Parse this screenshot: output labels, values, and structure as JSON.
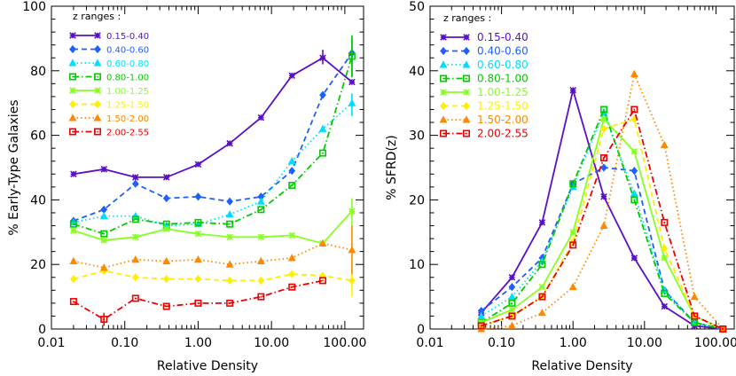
{
  "chart_data": [
    {
      "type": "line",
      "xlabel": "Relative Density",
      "ylabel": "% Early-Type Galaxies",
      "xscale": "log",
      "xlim": [
        0.01,
        180
      ],
      "ylim": [
        0,
        100
      ],
      "xticks": [
        0.01,
        0.1,
        1,
        10,
        100
      ],
      "xtick_labels": [
        "0.01",
        "0.10",
        "1.00",
        "10.00",
        "100.00"
      ],
      "yticks": [
        0,
        20,
        40,
        60,
        80,
        100
      ],
      "ytick_labels": [
        "0",
        "20",
        "40",
        "60",
        "80",
        "100"
      ],
      "legend_title": "z ranges :",
      "legend_position": "top-left",
      "series": [
        {
          "name": "0.15-0.40",
          "color": "#5a0fc8",
          "dash": "solid",
          "marker": "asterisk",
          "points": [
            [
              0.02,
              48
            ],
            [
              0.052,
              49.5
            ],
            [
              0.14,
              47
            ],
            [
              0.37,
              47
            ],
            [
              1.0,
              51
            ],
            [
              2.7,
              57.5
            ],
            [
              7.2,
              65.5
            ],
            [
              19,
              78.5
            ],
            [
              50,
              84
            ],
            [
              125,
              76.5
            ]
          ]
        },
        {
          "name": "0.40-0.60",
          "color": "#1f5fff",
          "dash": "dashed",
          "marker": "diamond",
          "points": [
            [
              0.02,
              33.5
            ],
            [
              0.052,
              37
            ],
            [
              0.14,
              45
            ],
            [
              0.37,
              40.5
            ],
            [
              1.0,
              41
            ],
            [
              2.7,
              39.5
            ],
            [
              7.2,
              41
            ],
            [
              19,
              49
            ],
            [
              50,
              72.5
            ],
            [
              125,
              85.5
            ]
          ]
        },
        {
          "name": "0.60-0.80",
          "color": "#00ddff",
          "dash": "dotted",
          "marker": "triangle",
          "points": [
            [
              0.02,
              33
            ],
            [
              0.052,
              35
            ],
            [
              0.14,
              35
            ],
            [
              0.37,
              32
            ],
            [
              1.0,
              32.5
            ],
            [
              2.7,
              35.5
            ],
            [
              7.2,
              39.5
            ],
            [
              19,
              52
            ],
            [
              50,
              62
            ],
            [
              125,
              70
            ]
          ]
        },
        {
          "name": "0.80-1.00",
          "color": "#00cc00",
          "dash": "dashdot",
          "marker": "square",
          "points": [
            [
              0.02,
              32.5
            ],
            [
              0.052,
              29.5
            ],
            [
              0.14,
              34
            ],
            [
              0.37,
              32.5
            ],
            [
              1.0,
              33
            ],
            [
              2.7,
              32.5
            ],
            [
              7.2,
              37
            ],
            [
              19,
              44.5
            ],
            [
              50,
              54.5
            ],
            [
              125,
              84.5
            ]
          ]
        },
        {
          "name": "1.00-1.25",
          "color": "#88ff22",
          "dash": "solid",
          "marker": "asterisk",
          "points": [
            [
              0.02,
              30.5
            ],
            [
              0.052,
              27.5
            ],
            [
              0.14,
              28.5
            ],
            [
              0.37,
              31
            ],
            [
              1.0,
              29.5
            ],
            [
              2.7,
              28.5
            ],
            [
              7.2,
              28.5
            ],
            [
              19,
              29
            ],
            [
              50,
              26.5
            ],
            [
              125,
              36.5
            ]
          ]
        },
        {
          "name": "1.25-1.50",
          "color": "#ffee00",
          "dash": "dashed",
          "marker": "diamond",
          "points": [
            [
              0.02,
              15.5
            ],
            [
              0.052,
              18
            ],
            [
              0.14,
              16
            ],
            [
              0.37,
              15.5
            ],
            [
              1.0,
              15.5
            ],
            [
              2.7,
              15
            ],
            [
              7.2,
              15
            ],
            [
              19,
              17
            ],
            [
              50,
              16.5
            ],
            [
              125,
              15
            ]
          ]
        },
        {
          "name": "1.50-2.00",
          "color": "#ff8800",
          "dash": "dotted",
          "marker": "triangle",
          "points": [
            [
              0.02,
              21
            ],
            [
              0.052,
              19
            ],
            [
              0.14,
              21.5
            ],
            [
              0.37,
              21
            ],
            [
              1.0,
              21.5
            ],
            [
              2.7,
              20
            ],
            [
              7.2,
              21
            ],
            [
              19,
              22
            ],
            [
              50,
              26.5
            ],
            [
              125,
              24.5
            ]
          ]
        },
        {
          "name": "2.00-2.55",
          "color": "#ee0000",
          "dash": "dashdot",
          "marker": "square",
          "points": [
            [
              0.02,
              8.5
            ],
            [
              0.052,
              3
            ],
            [
              0.14,
              9.5
            ],
            [
              0.37,
              7
            ],
            [
              1.0,
              8
            ],
            [
              2.7,
              8
            ],
            [
              7.2,
              10
            ],
            [
              19,
              13
            ],
            [
              50,
              15
            ]
          ]
        }
      ],
      "error_bars": [
        {
          "series": 0,
          "x": 50,
          "low": 82,
          "high": 86.5
        },
        {
          "series": 1,
          "x": 125,
          "low": 78,
          "high": 90
        },
        {
          "series": 2,
          "x": 125,
          "low": 66,
          "high": 73
        },
        {
          "series": 3,
          "x": 125,
          "low": 78,
          "high": 91
        },
        {
          "series": 4,
          "x": 125,
          "low": 31.5,
          "high": 40.5
        },
        {
          "series": 5,
          "x": 125,
          "low": 10,
          "high": 20
        },
        {
          "series": 6,
          "x": 125,
          "low": 17,
          "high": 32
        },
        {
          "series": 7,
          "x": 0.052,
          "low": 1,
          "high": 5
        }
      ]
    },
    {
      "type": "line",
      "xlabel": "Relative Density",
      "ylabel": "% SFRD(z)",
      "xscale": "log",
      "xlim": [
        0.01,
        180
      ],
      "ylim": [
        0,
        50
      ],
      "xticks": [
        0.01,
        0.1,
        1,
        10,
        100
      ],
      "xtick_labels": [
        "0.01",
        "0.10",
        "1.00",
        "10.00",
        "100.00"
      ],
      "yticks": [
        0,
        10,
        20,
        30,
        40,
        50
      ],
      "ytick_labels": [
        "0",
        "10",
        "20",
        "30",
        "40",
        "50"
      ],
      "legend_title": "z ranges :",
      "legend_position": "top-left",
      "series": [
        {
          "name": "0.15-0.40",
          "color": "#5a0fc8",
          "dash": "solid",
          "marker": "asterisk",
          "points": [
            [
              0.052,
              2.5
            ],
            [
              0.14,
              8
            ],
            [
              0.37,
              16.5
            ],
            [
              1.0,
              37
            ],
            [
              2.7,
              20.5
            ],
            [
              7.2,
              11
            ],
            [
              19,
              3.5
            ],
            [
              50,
              0.5
            ],
            [
              125,
              0
            ]
          ]
        },
        {
          "name": "0.40-0.60",
          "color": "#1f5fff",
          "dash": "dashed",
          "marker": "diamond",
          "points": [
            [
              0.052,
              2.8
            ],
            [
              0.14,
              6.5
            ],
            [
              0.37,
              11
            ],
            [
              1.0,
              22.5
            ],
            [
              2.7,
              25
            ],
            [
              7.2,
              24.5
            ],
            [
              19,
              6
            ],
            [
              50,
              1
            ],
            [
              125,
              0
            ]
          ]
        },
        {
          "name": "0.60-0.80",
          "color": "#00ddff",
          "dash": "dotted",
          "marker": "triangle",
          "points": [
            [
              0.052,
              2
            ],
            [
              0.14,
              5
            ],
            [
              0.37,
              10.5
            ],
            [
              1.0,
              22
            ],
            [
              2.7,
              33.5
            ],
            [
              7.2,
              21
            ],
            [
              19,
              6
            ],
            [
              50,
              1
            ],
            [
              125,
              0
            ]
          ]
        },
        {
          "name": "0.80-1.00",
          "color": "#00cc00",
          "dash": "dashdot",
          "marker": "square",
          "points": [
            [
              0.052,
              1
            ],
            [
              0.14,
              4
            ],
            [
              0.37,
              10
            ],
            [
              1.0,
              22.5
            ],
            [
              2.7,
              34
            ],
            [
              7.2,
              20
            ],
            [
              19,
              5.5
            ],
            [
              50,
              1
            ],
            [
              125,
              0
            ]
          ]
        },
        {
          "name": "1.00-1.25",
          "color": "#88ff22",
          "dash": "solid",
          "marker": "asterisk",
          "points": [
            [
              0.052,
              1
            ],
            [
              0.14,
              3
            ],
            [
              0.37,
              6.5
            ],
            [
              1.0,
              15
            ],
            [
              2.7,
              32.5
            ],
            [
              7.2,
              27.5
            ],
            [
              19,
              11
            ],
            [
              50,
              2
            ],
            [
              125,
              0
            ]
          ]
        },
        {
          "name": "1.25-1.50",
          "color": "#ffee00",
          "dash": "dashed",
          "marker": "diamond",
          "points": [
            [
              0.052,
              0.5
            ],
            [
              0.14,
              2
            ],
            [
              0.37,
              5
            ],
            [
              1.0,
              13.5
            ],
            [
              2.7,
              31
            ],
            [
              7.2,
              32.5
            ],
            [
              19,
              12.5
            ],
            [
              50,
              2
            ],
            [
              125,
              0
            ]
          ]
        },
        {
          "name": "1.50-2.00",
          "color": "#ff8800",
          "dash": "dotted",
          "marker": "triangle",
          "points": [
            [
              0.052,
              0
            ],
            [
              0.14,
              0.5
            ],
            [
              0.37,
              2.5
            ],
            [
              1.0,
              6.5
            ],
            [
              2.7,
              16
            ],
            [
              7.2,
              39.5
            ],
            [
              19,
              28.5
            ],
            [
              50,
              5
            ],
            [
              125,
              0
            ]
          ]
        },
        {
          "name": "2.00-2.55",
          "color": "#ee0000",
          "dash": "dashdot",
          "marker": "square",
          "points": [
            [
              0.052,
              0.5
            ],
            [
              0.14,
              2
            ],
            [
              0.37,
              5
            ],
            [
              1.0,
              13
            ],
            [
              2.7,
              26.5
            ],
            [
              7.2,
              34
            ],
            [
              19,
              16.5
            ],
            [
              50,
              2
            ],
            [
              125,
              0
            ]
          ]
        }
      ],
      "error_bars": []
    }
  ]
}
